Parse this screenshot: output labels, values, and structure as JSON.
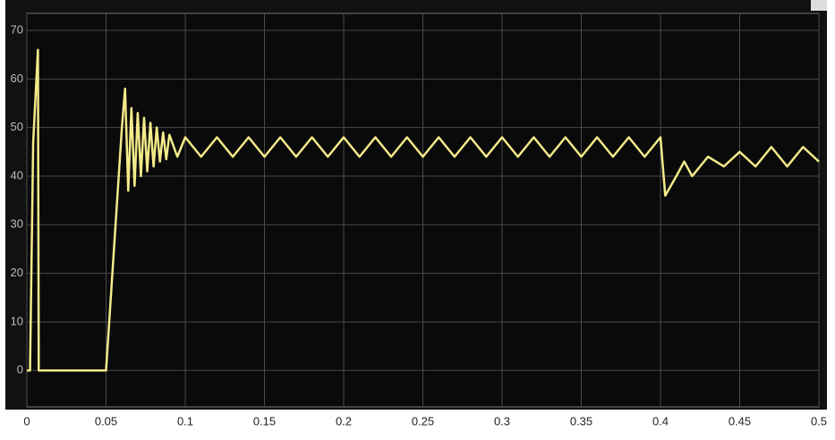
{
  "chart_data": {
    "type": "line",
    "x": [
      0,
      0.002,
      0.004,
      0.007,
      0.0075,
      0.05,
      0.056,
      0.06,
      0.062,
      0.064,
      0.066,
      0.068,
      0.07,
      0.072,
      0.074,
      0.076,
      0.078,
      0.08,
      0.082,
      0.084,
      0.086,
      0.088,
      0.09,
      0.095,
      0.1,
      0.11,
      0.12,
      0.13,
      0.14,
      0.15,
      0.16,
      0.17,
      0.18,
      0.19,
      0.2,
      0.21,
      0.22,
      0.23,
      0.24,
      0.25,
      0.26,
      0.27,
      0.28,
      0.29,
      0.3,
      0.31,
      0.32,
      0.33,
      0.34,
      0.35,
      0.36,
      0.37,
      0.38,
      0.39,
      0.4,
      0.403,
      0.41,
      0.415,
      0.42,
      0.43,
      0.44,
      0.45,
      0.46,
      0.47,
      0.48,
      0.49,
      0.5
    ],
    "series": [
      {
        "color": "#f3ea8a",
        "values": [
          0,
          0,
          47,
          66,
          0,
          0,
          30,
          50,
          58,
          37,
          54,
          38,
          53,
          40,
          52,
          41,
          51,
          42,
          50,
          43,
          49,
          43.5,
          48.5,
          44,
          48,
          44,
          48,
          44,
          48,
          44,
          48,
          44,
          48,
          44,
          48,
          44,
          48,
          44,
          48,
          44,
          48,
          44,
          48,
          44,
          48,
          44,
          48,
          44,
          48,
          44,
          48,
          44,
          48,
          44,
          48,
          36,
          40,
          43,
          40,
          44,
          42,
          45,
          42,
          46,
          42,
          46,
          43
        ]
      }
    ],
    "xlim": [
      0,
      0.5
    ],
    "xticks": [
      0,
      0.05,
      0.1,
      0.15,
      0.2,
      0.25,
      0.3,
      0.35,
      0.4,
      0.45,
      0.5
    ],
    "ylim": [
      -7.5,
      73.5
    ],
    "yticks": [
      0,
      10,
      20,
      30,
      40,
      50,
      60,
      70
    ],
    "grid": true
  }
}
